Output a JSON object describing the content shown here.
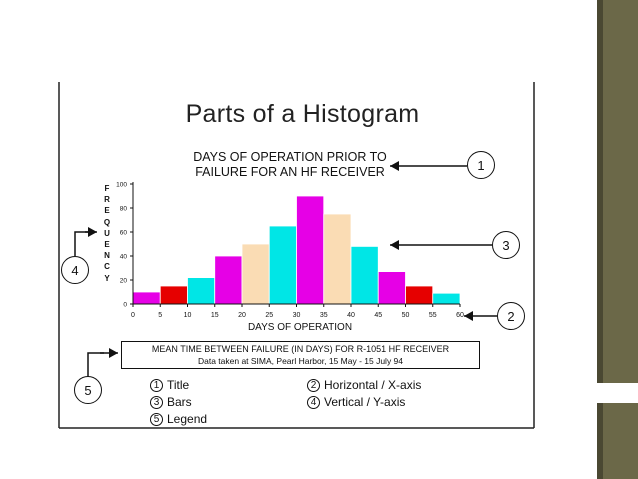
{
  "slide": {
    "accent_panel_color": "#6b6848",
    "accent_dark_color": "#4a4832"
  },
  "figure": {
    "title": "Parts of a Histogram",
    "key": [
      {
        "num": "1",
        "label": "Title"
      },
      {
        "num": "3",
        "label": "Bars"
      },
      {
        "num": "5",
        "label": "Legend"
      },
      {
        "num": "2",
        "label": "Horizontal / X-axis"
      },
      {
        "num": "4",
        "label": "Vertical / Y-axis"
      }
    ],
    "callouts": [
      "1",
      "3",
      "2",
      "4",
      "5"
    ]
  },
  "chart_data": {
    "type": "bar",
    "title_lines": [
      "DAYS OF OPERATION PRIOR TO",
      "FAILURE FOR AN HF RECEIVER"
    ],
    "xlabel": "DAYS OF OPERATION",
    "ylabel_letters": [
      "F",
      "R",
      "E",
      "Q",
      "U",
      "E",
      "N",
      "C",
      "Y"
    ],
    "x_ticks": [
      "0",
      "5",
      "10",
      "15",
      "20",
      "25",
      "30",
      "35",
      "40",
      "45",
      "50",
      "55",
      "60"
    ],
    "y_ticks": [
      "0",
      "20",
      "40",
      "60",
      "80",
      "100"
    ],
    "ylim": [
      0,
      100
    ],
    "xlim": [
      0,
      60
    ],
    "bins": [
      {
        "start": 0,
        "end": 5,
        "value": 10,
        "color": "#e600e6"
      },
      {
        "start": 5,
        "end": 10,
        "value": 15,
        "color": "#e60000"
      },
      {
        "start": 10,
        "end": 15,
        "value": 22,
        "color": "#00e6e6"
      },
      {
        "start": 15,
        "end": 20,
        "value": 40,
        "color": "#e600e6"
      },
      {
        "start": 20,
        "end": 25,
        "value": 50,
        "color": "#fadcb4"
      },
      {
        "start": 25,
        "end": 30,
        "value": 65,
        "color": "#00e6e6"
      },
      {
        "start": 30,
        "end": 35,
        "value": 90,
        "color": "#e600e6"
      },
      {
        "start": 35,
        "end": 40,
        "value": 75,
        "color": "#fadcb4"
      },
      {
        "start": 40,
        "end": 45,
        "value": 48,
        "color": "#00e6e6"
      },
      {
        "start": 45,
        "end": 50,
        "value": 27,
        "color": "#e600e6"
      },
      {
        "start": 50,
        "end": 55,
        "value": 15,
        "color": "#e60000"
      },
      {
        "start": 55,
        "end": 60,
        "value": 9,
        "color": "#00e6e6"
      }
    ],
    "legend_lines": [
      "MEAN TIME BETWEEN FAILURE (IN DAYS) FOR R-1051 HF RECEIVER",
      "Data taken at SIMA, Pearl Harbor, 15 May - 15 July 94"
    ]
  }
}
